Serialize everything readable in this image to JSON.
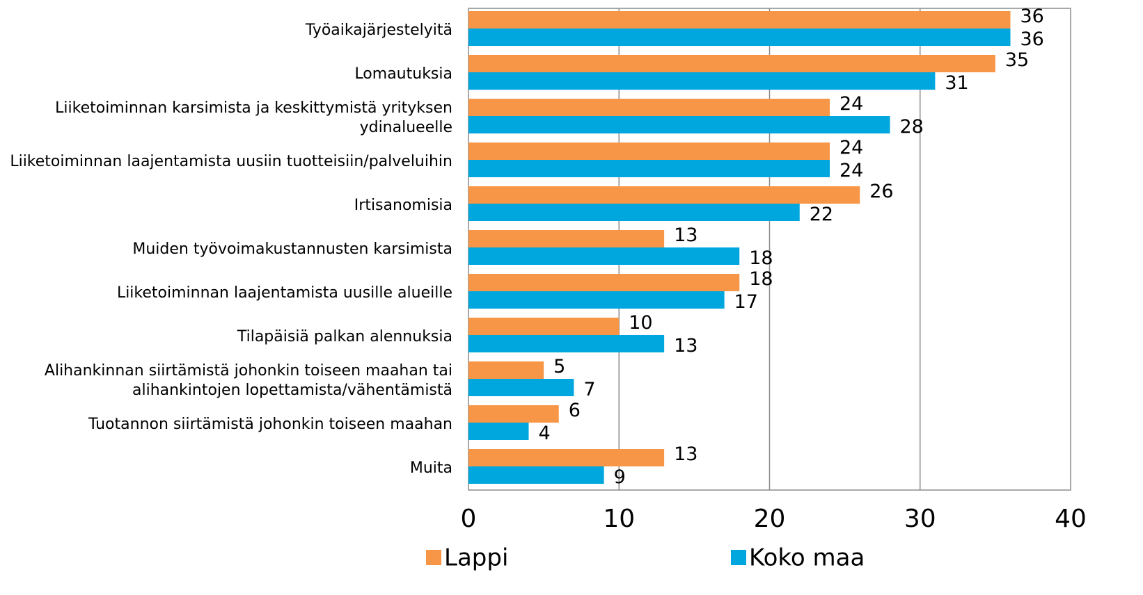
{
  "chart_data": {
    "type": "bar",
    "orientation": "horizontal",
    "categories": [
      "Työaikajärjestelyitä",
      "Lomautuksia",
      "Liiketoiminnan karsimista ja keskittymistä yrityksen ydinalueelle",
      "Liiketoiminnan laajentamista uusiin tuotteisiin/palveluihin",
      "Irtisanomisia",
      "Muiden työvoimakustannusten karsimista",
      "Liiketoiminnan laajentamista uusille alueille",
      "Tilapäisiä palkan alennuksia",
      "Alihankinnan siirtämistä johonkin toiseen maahan tai alihankintojen lopettamista/vähentämistä",
      "Tuotannon siirtämistä johonkin toiseen maahan",
      "Muita"
    ],
    "series": [
      {
        "name": "Lappi",
        "color": "#f79646",
        "values": [
          36,
          35,
          24,
          24,
          26,
          13,
          18,
          10,
          5,
          6,
          13
        ]
      },
      {
        "name": "Koko maa",
        "color": "#00a6de",
        "values": [
          36,
          31,
          28,
          24,
          22,
          18,
          17,
          13,
          7,
          4,
          9
        ]
      }
    ],
    "xlim": [
      0,
      40
    ],
    "xticks": [
      0,
      10,
      20,
      30,
      40
    ],
    "grid": true,
    "legend": "bottom"
  }
}
